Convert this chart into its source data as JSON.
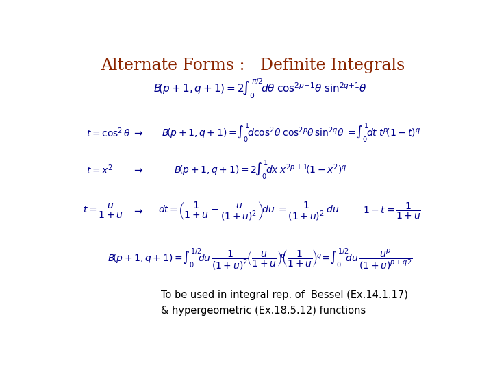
{
  "title": "Alternate Forms :   Definite Integrals",
  "title_color": "#8B2500",
  "title_fontsize": 17,
  "bg_color": "#FFFFFF",
  "math_color": "#00008B",
  "text_color": "#000000",
  "footer_text": "To be used in integral rep. of  Bessel (Ex.14.1.17)\n& hypergeometric (Ex.18.5.12) functions"
}
